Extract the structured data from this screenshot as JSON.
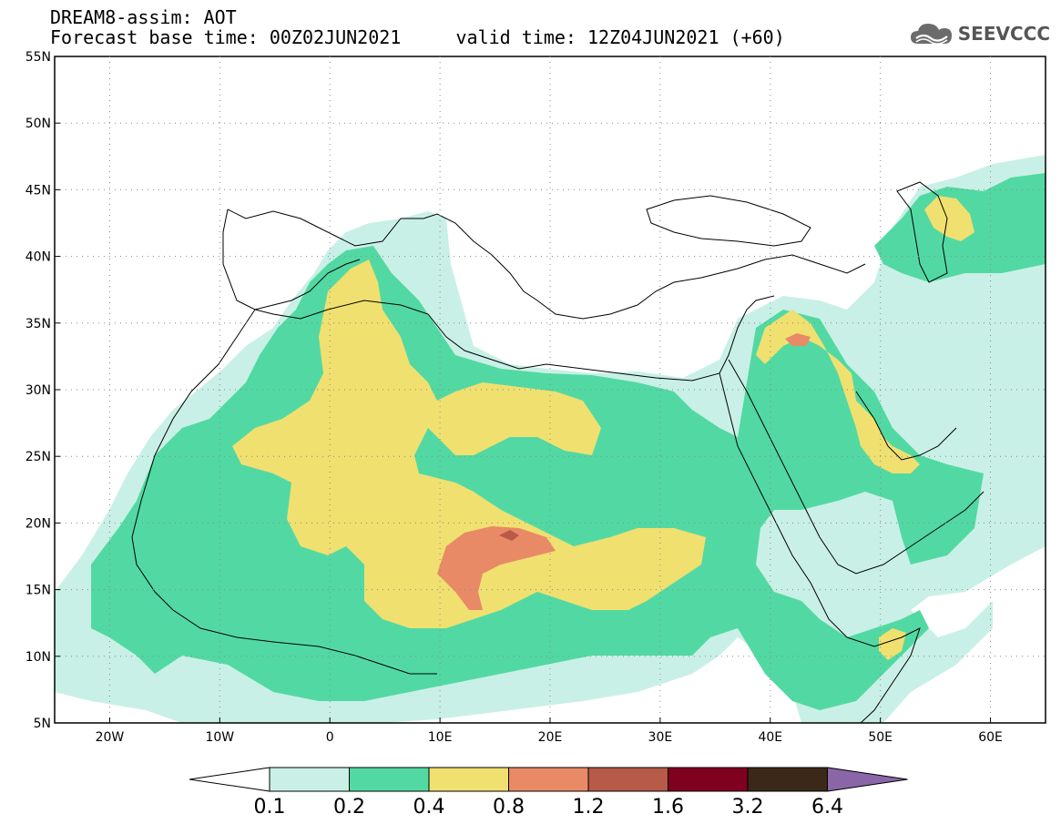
{
  "title": {
    "line1": "DREAM8-assim: AOT",
    "line2": "Forecast base time: 00Z02JUN2021     valid time: 12Z04JUN2021 (+60)"
  },
  "logo": {
    "text": "SEEVCCC",
    "icon": "cloud-icon"
  },
  "map": {
    "lon_range": [
      -25,
      65
    ],
    "lat_range": [
      5,
      55
    ],
    "lat_ticks": [
      "55N",
      "50N",
      "45N",
      "40N",
      "35N",
      "30N",
      "25N",
      "20N",
      "15N",
      "10N",
      "5N"
    ],
    "lon_ticks": [
      "20W",
      "10W",
      "0",
      "10E",
      "20E",
      "30E",
      "40E",
      "50E",
      "60E"
    ],
    "grid": "dotted"
  },
  "colorbar": {
    "labels": [
      "0.1",
      "0.2",
      "0.4",
      "0.8",
      "1.2",
      "1.6",
      "3.2",
      "6.4"
    ],
    "colors": [
      "#ffffff",
      "#c9f0e6",
      "#52d9a3",
      "#f0e070",
      "#e88a66",
      "#b85a48",
      "#800020",
      "#3c2818",
      "#8a66a8"
    ]
  }
}
